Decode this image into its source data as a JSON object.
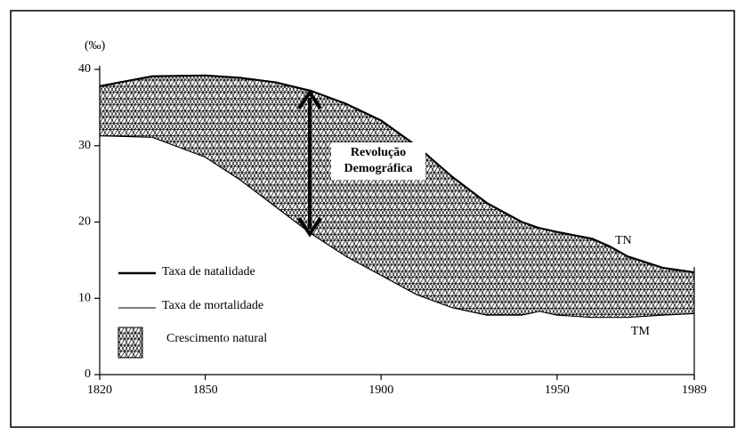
{
  "chart_data": {
    "type": "area-between",
    "y_label": "(‰)",
    "x": [
      1820,
      1835,
      1850,
      1860,
      1870,
      1880,
      1890,
      1900,
      1910,
      1920,
      1930,
      1940,
      1945,
      1950,
      1960,
      1965,
      1970,
      1980,
      1989
    ],
    "series": [
      {
        "name": "Taxa de natalidade",
        "color": "#000000",
        "label": "TN",
        "values": [
          37.8,
          39.1,
          39.2,
          38.9,
          38.3,
          37.2,
          35.5,
          33.3,
          30,
          26,
          22.5,
          20,
          19.2,
          18.7,
          17.8,
          16.8,
          15.5,
          14,
          13.4
        ]
      },
      {
        "name": "Taxa de mortalidade",
        "color": "#000000",
        "label": "TM",
        "values": [
          31.3,
          31.1,
          28.5,
          25.5,
          22,
          18.5,
          15.5,
          13,
          10.5,
          8.8,
          7.8,
          7.8,
          8.3,
          7.8,
          7.5,
          7.5,
          7.5,
          7.8,
          8
        ]
      }
    ],
    "area_name": "Crescimento natural",
    "annotation": [
      "Revolução",
      "Demográfica"
    ],
    "xlim": [
      1820,
      1989
    ],
    "xticks": [
      1820,
      1850,
      1900,
      1950,
      1989
    ],
    "ylim": [
      0,
      40
    ],
    "yticks": [
      0,
      10,
      20,
      30,
      40
    ]
  }
}
